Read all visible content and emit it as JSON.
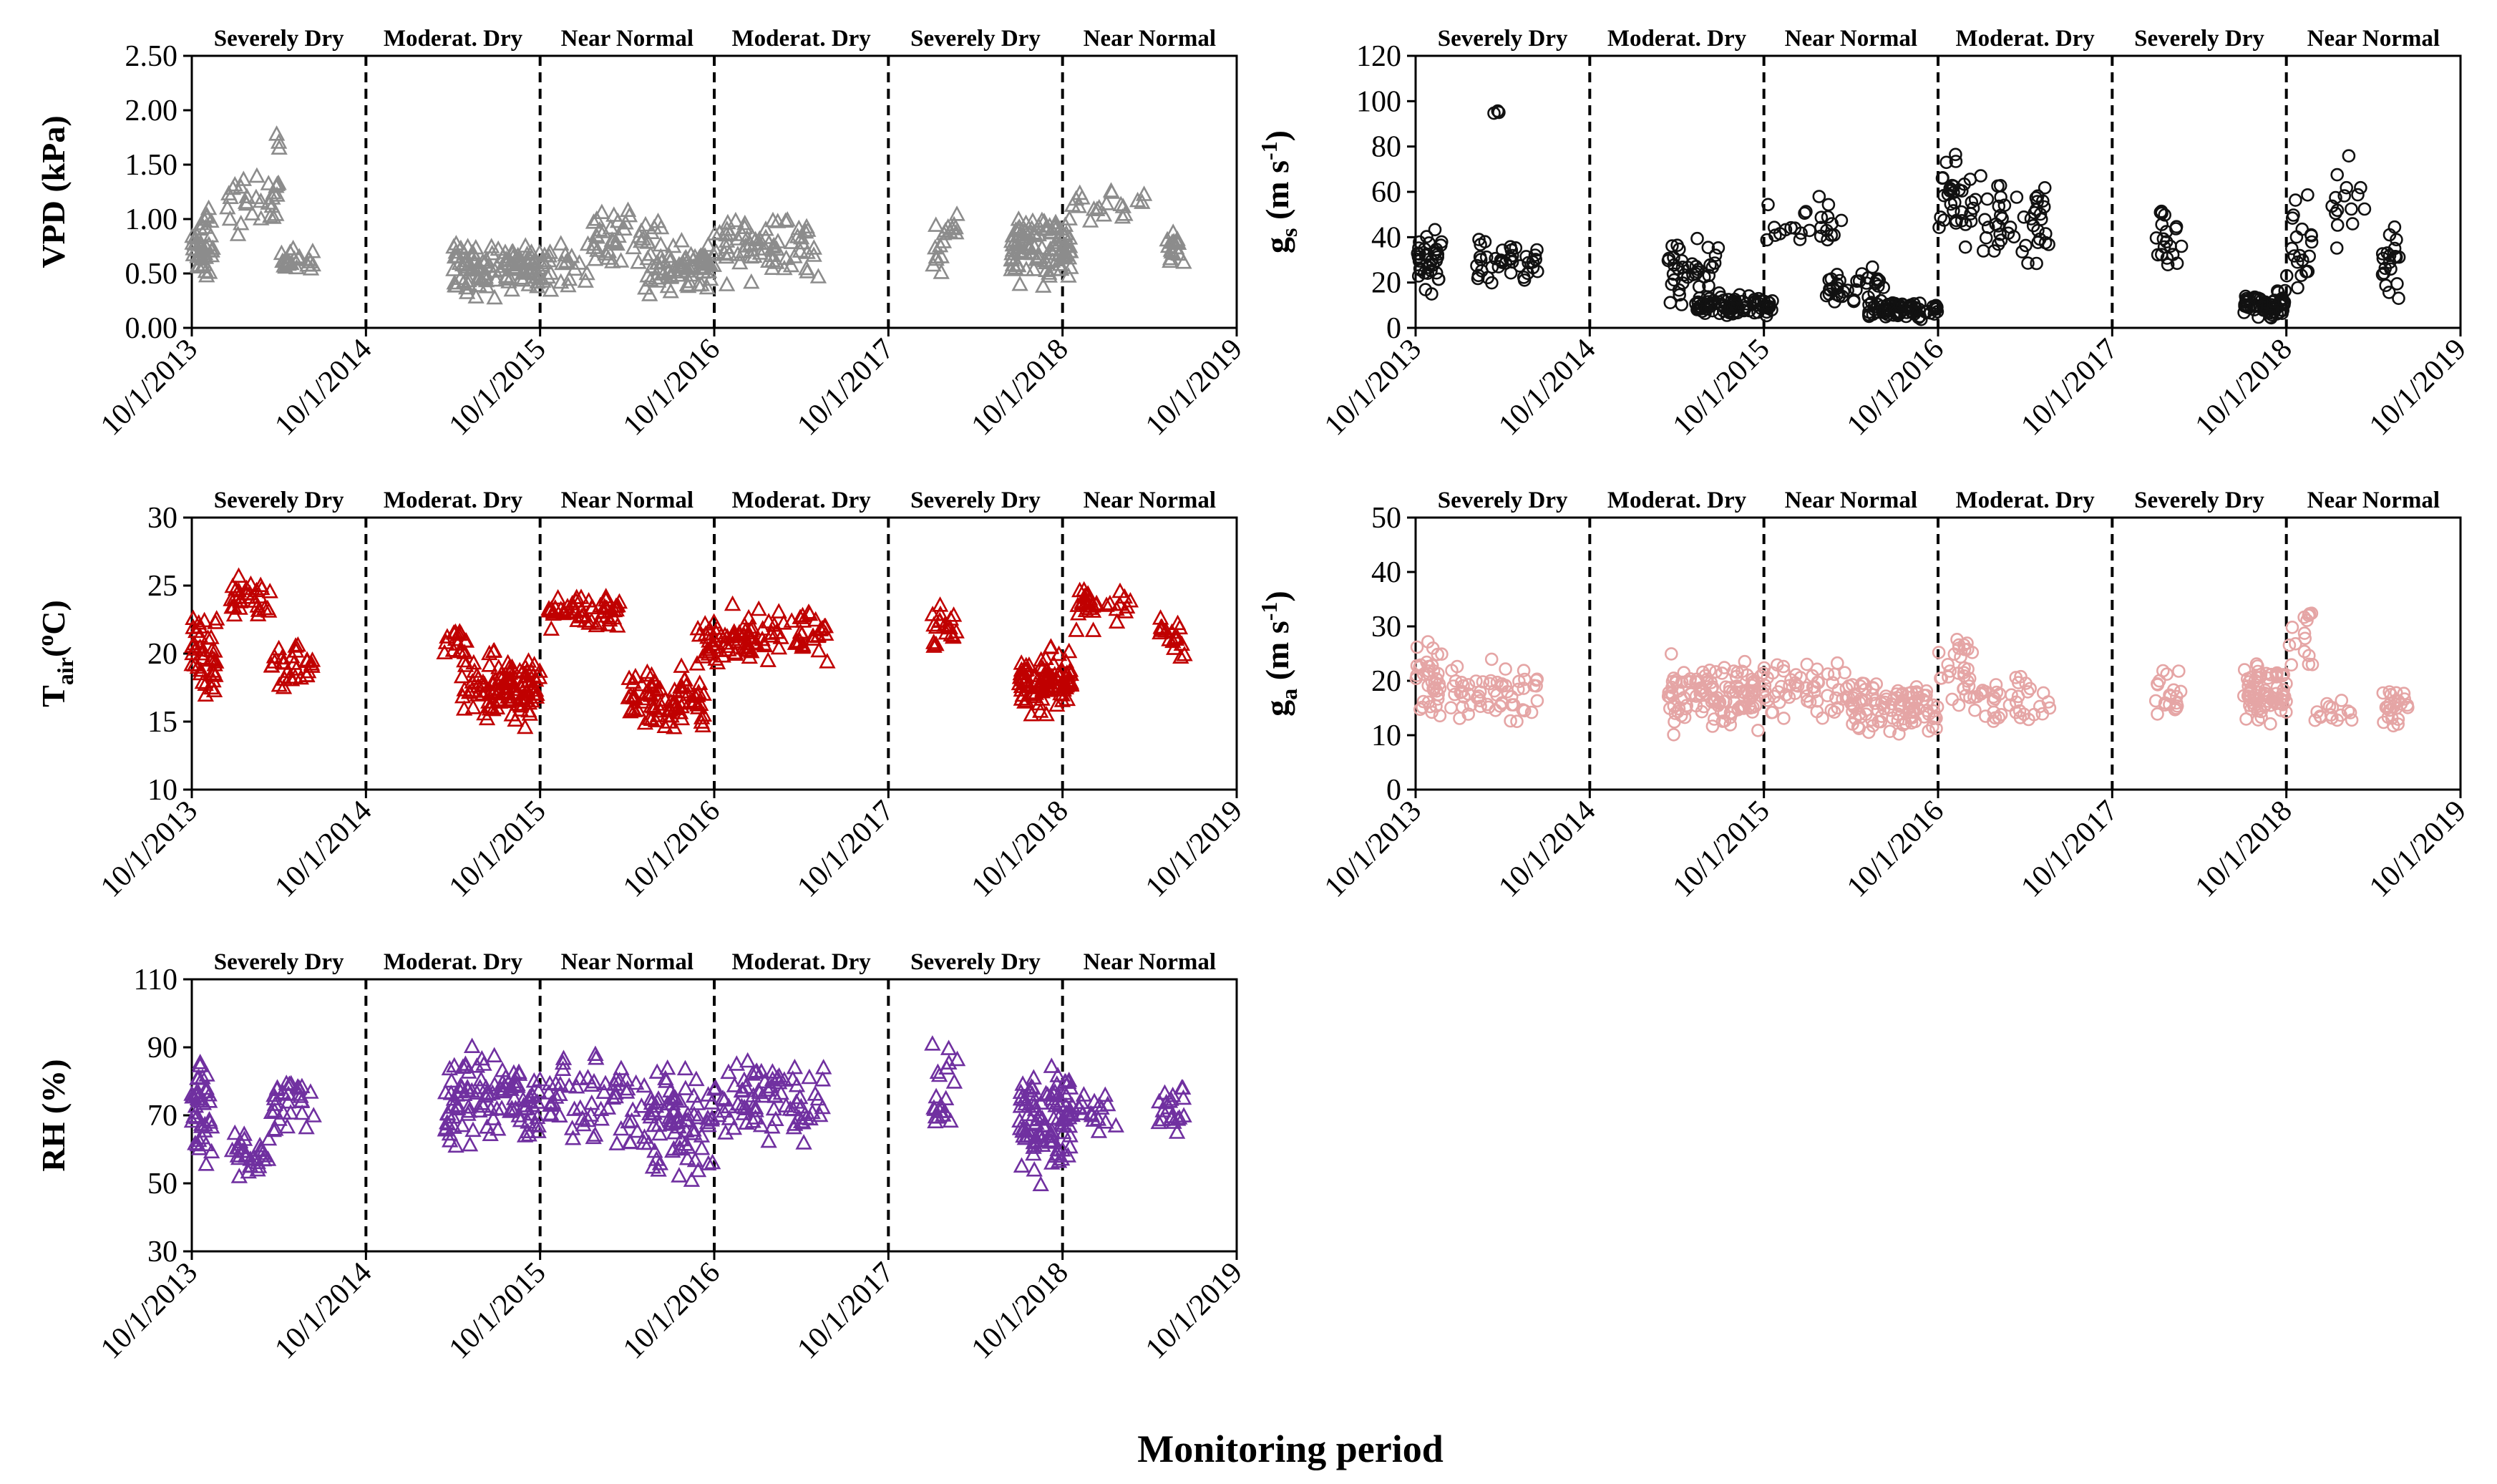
{
  "figure": {
    "x_title": "Monitoring period"
  },
  "chart_data": [
    {
      "id": "vpd",
      "type": "scatter",
      "ylabel": "VPD (kPa)",
      "ylim": [
        0,
        2.5
      ],
      "yticks": [
        "0.00",
        "0.50",
        "1.00",
        "1.50",
        "2.00",
        "2.50"
      ],
      "marker": "triangle",
      "color": "#8c8c8c",
      "x_dates": [
        "10/1/2013",
        "10/1/2014",
        "10/1/2015",
        "10/1/2016",
        "10/1/2017",
        "10/1/2018",
        "10/1/2019"
      ],
      "seasons": [
        "Severely Dry",
        "Moderat. Dry",
        "Near Normal",
        "Moderat. Dry",
        "Severely Dry",
        "Near Normal"
      ],
      "clusters": [
        {
          "x_start": 0.0,
          "x_end": 0.12,
          "y_mean": 0.75,
          "y_spread": 0.45,
          "n": 45
        },
        {
          "x_start": 0.2,
          "x_end": 0.5,
          "y_mean": 1.15,
          "y_spread": 0.35,
          "n": 30
        },
        {
          "x_start": 0.5,
          "x_end": 0.7,
          "y_mean": 0.6,
          "y_spread": 0.2,
          "n": 25
        },
        {
          "x_start": 0.45,
          "x_end": 0.55,
          "y_mean": 1.7,
          "y_spread": 0.2,
          "n": 3
        },
        {
          "x_start": 1.5,
          "x_end": 2.0,
          "y_mean": 0.55,
          "y_spread": 0.35,
          "n": 110
        },
        {
          "x_start": 2.0,
          "x_end": 2.3,
          "y_mean": 0.55,
          "y_spread": 0.3,
          "n": 25
        },
        {
          "x_start": 2.3,
          "x_end": 2.7,
          "y_mean": 0.85,
          "y_spread": 0.4,
          "n": 40
        },
        {
          "x_start": 2.6,
          "x_end": 3.0,
          "y_mean": 0.55,
          "y_spread": 0.35,
          "n": 75
        },
        {
          "x_start": 3.0,
          "x_end": 3.6,
          "y_mean": 0.75,
          "y_spread": 0.45,
          "n": 70
        },
        {
          "x_start": 4.25,
          "x_end": 4.4,
          "y_mean": 0.75,
          "y_spread": 0.5,
          "n": 18
        },
        {
          "x_start": 4.7,
          "x_end": 5.05,
          "y_mean": 0.75,
          "y_spread": 0.4,
          "n": 110
        },
        {
          "x_start": 5.05,
          "x_end": 5.5,
          "y_mean": 1.1,
          "y_spread": 0.25,
          "n": 20
        },
        {
          "x_start": 5.6,
          "x_end": 5.7,
          "y_mean": 0.7,
          "y_spread": 0.3,
          "n": 18
        }
      ]
    },
    {
      "id": "gs",
      "type": "scatter",
      "ylabel_main": "g",
      "ylabel_sub": "s",
      "ylabel_unit": " (m s",
      "ylabel_sup": "-1",
      "ylabel_end": ")",
      "ylim": [
        0,
        120
      ],
      "yticks": [
        "0",
        "20",
        "40",
        "60",
        "80",
        "100",
        "120"
      ],
      "marker": "circle",
      "color": "#111111",
      "x_dates": [
        "10/1/2013",
        "10/1/2014",
        "10/1/2015",
        "10/1/2016",
        "10/1/2017",
        "10/1/2018",
        "10/1/2019"
      ],
      "seasons": [
        "Severely Dry",
        "Moderat. Dry",
        "Near Normal",
        "Moderat. Dry",
        "Severely Dry",
        "Near Normal"
      ],
      "clusters": [
        {
          "x_start": 0.0,
          "x_end": 0.15,
          "y_mean": 28,
          "y_spread": 18,
          "n": 35
        },
        {
          "x_start": 0.35,
          "x_end": 0.7,
          "y_mean": 28,
          "y_spread": 15,
          "n": 40
        },
        {
          "x_start": 0.45,
          "x_end": 0.5,
          "y_mean": 95,
          "y_spread": 4,
          "n": 3
        },
        {
          "x_start": 1.45,
          "x_end": 1.75,
          "y_mean": 25,
          "y_spread": 20,
          "n": 40
        },
        {
          "x_start": 1.6,
          "x_end": 2.05,
          "y_mean": 10,
          "y_spread": 6,
          "n": 90
        },
        {
          "x_start": 2.0,
          "x_end": 2.5,
          "y_mean": 45,
          "y_spread": 20,
          "n": 25
        },
        {
          "x_start": 2.35,
          "x_end": 2.7,
          "y_mean": 18,
          "y_spread": 10,
          "n": 35
        },
        {
          "x_start": 2.6,
          "x_end": 3.0,
          "y_mean": 8,
          "y_spread": 6,
          "n": 70
        },
        {
          "x_start": 3.0,
          "x_end": 3.25,
          "y_mean": 55,
          "y_spread": 30,
          "n": 35
        },
        {
          "x_start": 3.25,
          "x_end": 3.65,
          "y_mean": 45,
          "y_spread": 28,
          "n": 45
        },
        {
          "x_start": 4.25,
          "x_end": 4.4,
          "y_mean": 40,
          "y_spread": 22,
          "n": 20
        },
        {
          "x_start": 4.75,
          "x_end": 5.0,
          "y_mean": 10,
          "y_spread": 8,
          "n": 70
        },
        {
          "x_start": 5.0,
          "x_end": 5.15,
          "y_mean": 40,
          "y_spread": 25,
          "n": 20
        },
        {
          "x_start": 5.25,
          "x_end": 5.45,
          "y_mean": 55,
          "y_spread": 25,
          "n": 15
        },
        {
          "x_start": 5.55,
          "x_end": 5.65,
          "y_mean": 30,
          "y_spread": 25,
          "n": 20
        }
      ]
    },
    {
      "id": "tair",
      "type": "scatter",
      "ylabel_main": "T",
      "ylabel_sub": "air",
      "ylabel_unit": "(",
      "ylabel_sup": "o",
      "ylabel_end": "C)",
      "ylim": [
        10,
        30
      ],
      "yticks": [
        "10",
        "15",
        "20",
        "25",
        "30"
      ],
      "marker": "triangle",
      "color": "#c00000",
      "x_dates": [
        "10/1/2013",
        "10/1/2014",
        "10/1/2015",
        "10/1/2016",
        "10/1/2017",
        "10/1/2018",
        "10/1/2019"
      ],
      "seasons": [
        "Severely Dry",
        "Moderat. Dry",
        "Near Normal",
        "Moderat. Dry",
        "Severely Dry",
        "Near Normal"
      ],
      "clusters": [
        {
          "x_start": 0.0,
          "x_end": 0.15,
          "y_mean": 20,
          "y_spread": 5,
          "n": 40
        },
        {
          "x_start": 0.2,
          "x_end": 0.45,
          "y_mean": 24,
          "y_spread": 2,
          "n": 30
        },
        {
          "x_start": 0.45,
          "x_end": 0.7,
          "y_mean": 19.5,
          "y_spread": 2.5,
          "n": 30
        },
        {
          "x_start": 1.45,
          "x_end": 1.6,
          "y_mean": 21,
          "y_spread": 1.5,
          "n": 15
        },
        {
          "x_start": 1.55,
          "x_end": 2.0,
          "y_mean": 17.5,
          "y_spread": 3.5,
          "n": 110
        },
        {
          "x_start": 2.05,
          "x_end": 2.5,
          "y_mean": 23,
          "y_spread": 2,
          "n": 50
        },
        {
          "x_start": 2.5,
          "x_end": 2.95,
          "y_mean": 16.5,
          "y_spread": 3.5,
          "n": 80
        },
        {
          "x_start": 2.9,
          "x_end": 3.2,
          "y_mean": 21,
          "y_spread": 3,
          "n": 50
        },
        {
          "x_start": 3.2,
          "x_end": 3.65,
          "y_mean": 21.5,
          "y_spread": 3,
          "n": 50
        },
        {
          "x_start": 4.25,
          "x_end": 4.4,
          "y_mean": 22,
          "y_spread": 3,
          "n": 20
        },
        {
          "x_start": 4.75,
          "x_end": 5.05,
          "y_mean": 18,
          "y_spread": 3,
          "n": 100
        },
        {
          "x_start": 5.05,
          "x_end": 5.4,
          "y_mean": 23.5,
          "y_spread": 2.5,
          "n": 30
        },
        {
          "x_start": 5.55,
          "x_end": 5.7,
          "y_mean": 21.5,
          "y_spread": 3,
          "n": 20
        }
      ]
    },
    {
      "id": "ga",
      "type": "scatter",
      "ylabel_main": "g",
      "ylabel_sub": "a",
      "ylabel_unit": " (m s",
      "ylabel_sup": "-1",
      "ylabel_end": ")",
      "ylim": [
        0,
        50
      ],
      "yticks": [
        "0",
        "10",
        "20",
        "30",
        "40",
        "50"
      ],
      "marker": "circle",
      "color": "#e5a5a5",
      "x_dates": [
        "10/1/2013",
        "10/1/2014",
        "10/1/2015",
        "10/1/2016",
        "10/1/2017",
        "10/1/2018",
        "10/1/2019"
      ],
      "seasons": [
        "Severely Dry",
        "Moderat. Dry",
        "Near Normal",
        "Moderat. Dry",
        "Severely Dry",
        "Near Normal"
      ],
      "clusters": [
        {
          "x_start": 0.0,
          "x_end": 0.15,
          "y_mean": 20,
          "y_spread": 10,
          "n": 40
        },
        {
          "x_start": 0.2,
          "x_end": 0.7,
          "y_mean": 18,
          "y_spread": 8,
          "n": 60
        },
        {
          "x_start": 1.45,
          "x_end": 2.05,
          "y_mean": 17,
          "y_spread": 9,
          "n": 130
        },
        {
          "x_start": 2.05,
          "x_end": 2.5,
          "y_mean": 18,
          "y_spread": 8,
          "n": 50
        },
        {
          "x_start": 2.5,
          "x_end": 3.0,
          "y_mean": 15,
          "y_spread": 7,
          "n": 100
        },
        {
          "x_start": 3.0,
          "x_end": 3.2,
          "y_mean": 22,
          "y_spread": 10,
          "n": 30
        },
        {
          "x_start": 3.2,
          "x_end": 3.65,
          "y_mean": 17,
          "y_spread": 6,
          "n": 40
        },
        {
          "x_start": 4.25,
          "x_end": 4.4,
          "y_mean": 18,
          "y_spread": 7,
          "n": 20
        },
        {
          "x_start": 4.75,
          "x_end": 5.0,
          "y_mean": 18,
          "y_spread": 8,
          "n": 80
        },
        {
          "x_start": 5.0,
          "x_end": 5.15,
          "y_mean": 28,
          "y_spread": 10,
          "n": 15
        },
        {
          "x_start": 5.15,
          "x_end": 5.4,
          "y_mean": 14,
          "y_spread": 4,
          "n": 15
        },
        {
          "x_start": 5.55,
          "x_end": 5.7,
          "y_mean": 15,
          "y_spread": 5,
          "n": 25
        }
      ]
    },
    {
      "id": "rh",
      "type": "scatter",
      "ylabel": "RH (%)",
      "ylim": [
        30,
        110
      ],
      "yticks": [
        "30",
        "50",
        "70",
        "90",
        "110"
      ],
      "marker": "triangle",
      "color": "#7030a0",
      "x_dates": [
        "10/1/2013",
        "10/1/2014",
        "10/1/2015",
        "10/1/2016",
        "10/1/2017",
        "10/1/2018",
        "10/1/2019"
      ],
      "seasons": [
        "Severely Dry",
        "Moderat. Dry",
        "Near Normal",
        "Moderat. Dry",
        "Severely Dry",
        "Near Normal"
      ],
      "clusters": [
        {
          "x_start": 0.0,
          "x_end": 0.12,
          "y_mean": 70,
          "y_spread": 22,
          "n": 40
        },
        {
          "x_start": 0.2,
          "x_end": 0.45,
          "y_mean": 58,
          "y_spread": 12,
          "n": 30
        },
        {
          "x_start": 0.45,
          "x_end": 0.7,
          "y_mean": 74,
          "y_spread": 12,
          "n": 30
        },
        {
          "x_start": 1.45,
          "x_end": 2.0,
          "y_mean": 75,
          "y_spread": 18,
          "n": 110
        },
        {
          "x_start": 2.05,
          "x_end": 2.5,
          "y_mean": 75,
          "y_spread": 18,
          "n": 50
        },
        {
          "x_start": 2.5,
          "x_end": 3.0,
          "y_mean": 67,
          "y_spread": 22,
          "n": 90
        },
        {
          "x_start": 3.0,
          "x_end": 3.65,
          "y_mean": 75,
          "y_spread": 16,
          "n": 80
        },
        {
          "x_start": 4.25,
          "x_end": 4.4,
          "y_mean": 78,
          "y_spread": 20,
          "n": 20
        },
        {
          "x_start": 4.75,
          "x_end": 5.05,
          "y_mean": 68,
          "y_spread": 22,
          "n": 100
        },
        {
          "x_start": 5.05,
          "x_end": 5.4,
          "y_mean": 70,
          "y_spread": 10,
          "n": 20
        },
        {
          "x_start": 5.55,
          "x_end": 5.7,
          "y_mean": 72,
          "y_spread": 14,
          "n": 20
        }
      ]
    }
  ]
}
